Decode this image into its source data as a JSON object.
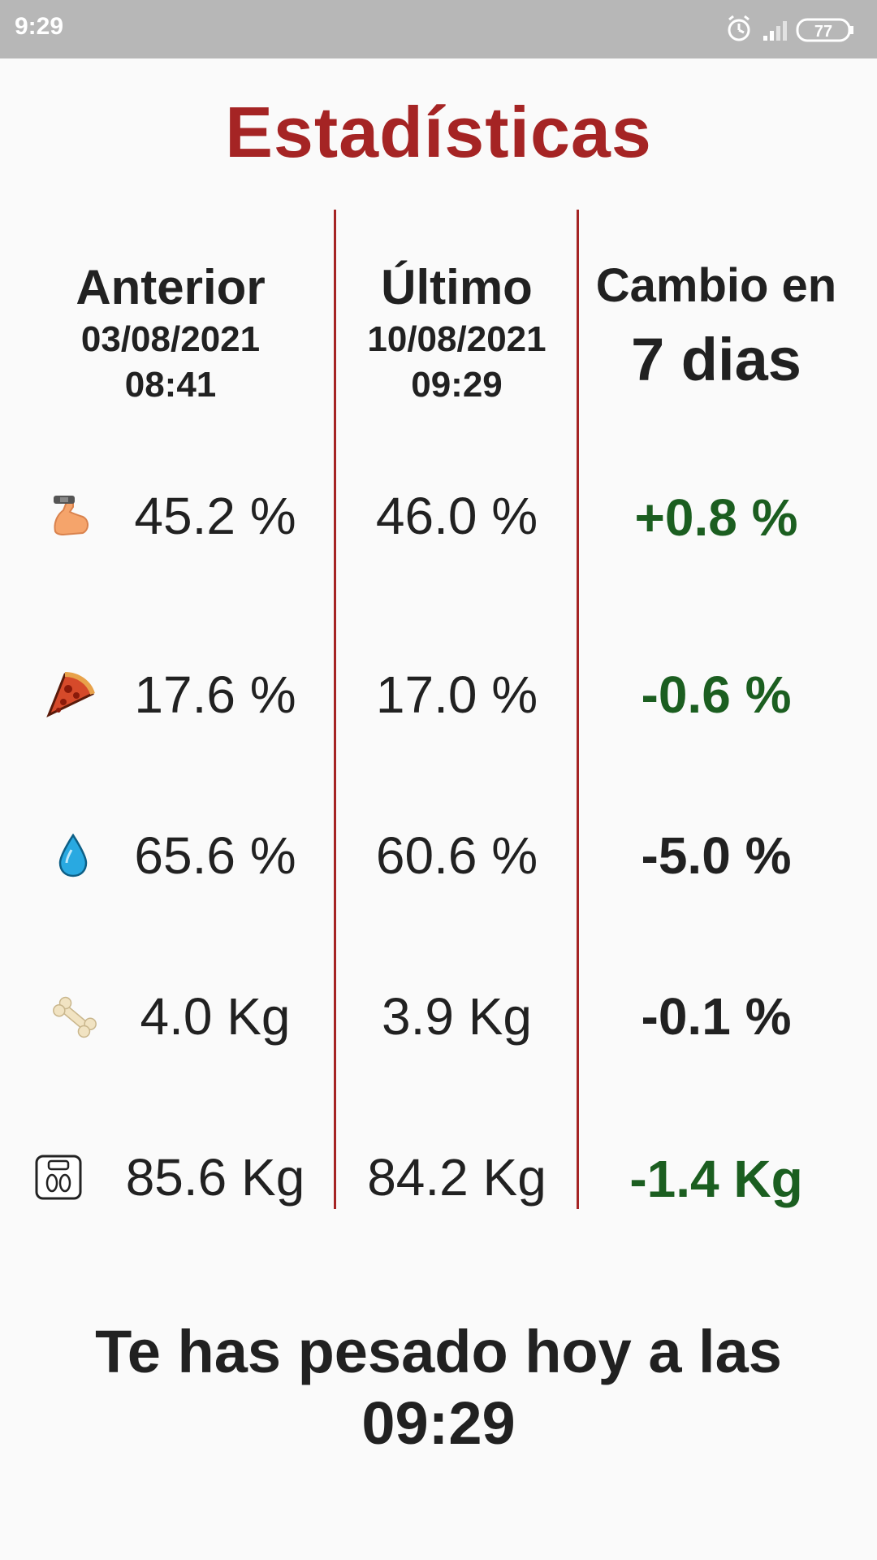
{
  "status_bar": {
    "time": "9:29",
    "battery": "77",
    "icons": [
      "alarm-icon",
      "signal-icon",
      "battery-icon"
    ]
  },
  "title": "Estadísticas",
  "columns": {
    "previous": {
      "label": "Anterior",
      "date": "03/08/2021",
      "time": "08:41"
    },
    "latest": {
      "label": "Último",
      "date": "10/08/2021",
      "time": "09:29"
    },
    "change": {
      "label": "Cambio en",
      "period": "7 dias"
    }
  },
  "rows": [
    {
      "icon": "muscle-icon",
      "previous": "45.2 %",
      "latest": "46.0 %",
      "change": "+0.8 %",
      "change_color": "#1b5e20"
    },
    {
      "icon": "pizza-icon",
      "previous": "17.6 %",
      "latest": "17.0 %",
      "change": "-0.6 %",
      "change_color": "#1b5e20"
    },
    {
      "icon": "water-drop-icon",
      "previous": "65.6 %",
      "latest": "60.6 %",
      "change": "-5.0 %",
      "change_color": "#212121"
    },
    {
      "icon": "bone-icon",
      "previous": "4.0 Kg",
      "latest": "3.9 Kg",
      "change": "-0.1 %",
      "change_color": "#212121"
    },
    {
      "icon": "scale-icon",
      "previous": "85.6 Kg",
      "latest": "84.2 Kg",
      "change": "-1.4 Kg",
      "change_color": "#1b5e20"
    }
  ],
  "footer": {
    "line1": "Te has pesado hoy a las",
    "line2": "09:29"
  },
  "colors": {
    "accent": "#a52424",
    "positive": "#1b5e20",
    "neutral": "#212121",
    "status_bar": "#b7b7b7"
  }
}
